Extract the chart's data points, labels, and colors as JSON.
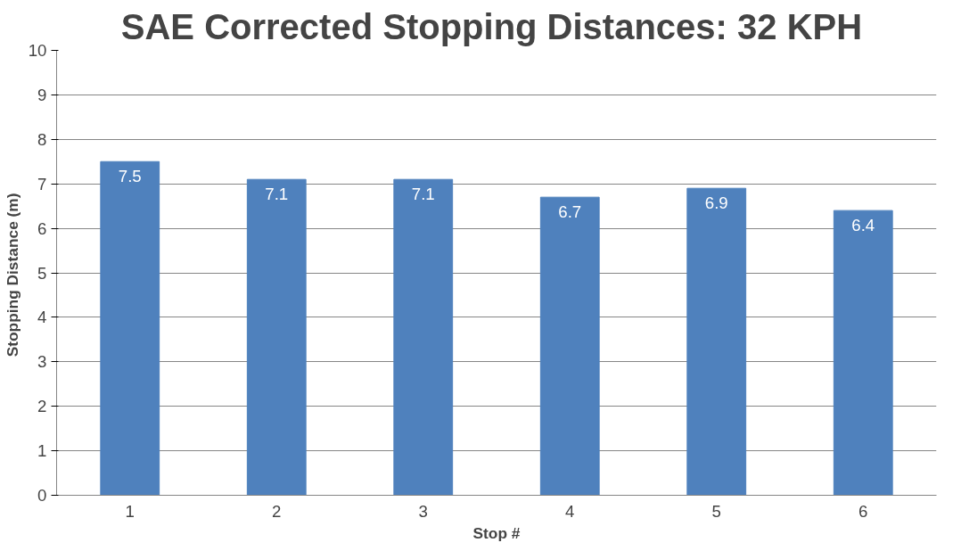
{
  "chart_data": {
    "type": "bar",
    "title": "SAE Corrected Stopping Distances:  32 KPH",
    "xlabel": "Stop #",
    "ylabel": "Stopping Distance  (m)",
    "categories": [
      "1",
      "2",
      "3",
      "4",
      "5",
      "6"
    ],
    "values": [
      7.5,
      7.1,
      7.1,
      6.7,
      6.9,
      6.4
    ],
    "color": "#4f81bd",
    "data_labels": true,
    "ylim": [
      0,
      10
    ],
    "yticks": [
      0,
      1,
      2,
      3,
      4,
      5,
      6,
      7,
      8,
      9,
      10
    ],
    "grid": "y"
  }
}
